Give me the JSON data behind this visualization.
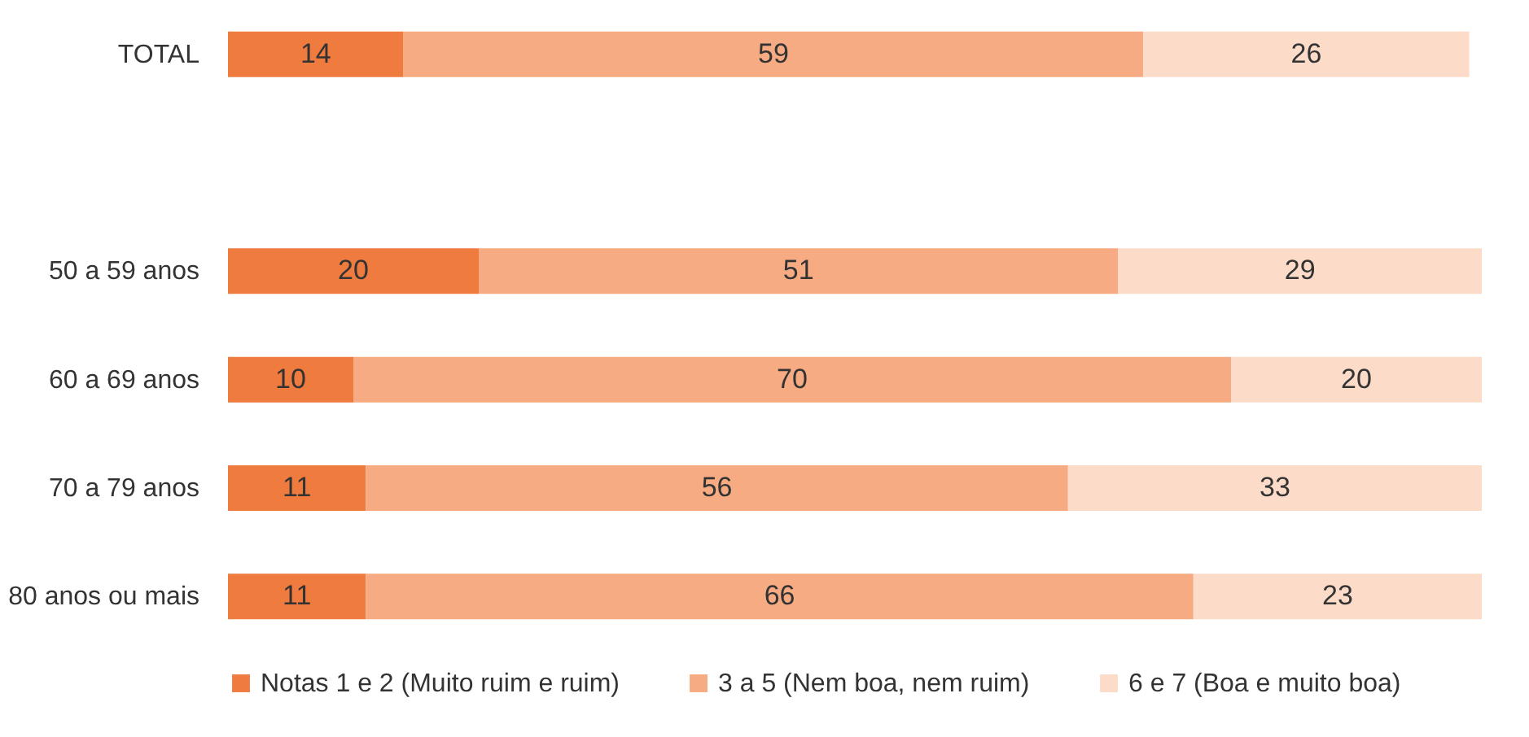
{
  "chart_data": {
    "type": "bar",
    "orientation": "horizontal",
    "stacked": true,
    "data_labels": true,
    "legend": "bottom",
    "categories": [
      "TOTAL",
      null,
      "50 a 59 anos",
      "60 a 69 anos",
      "70 a 79 anos",
      "80 anos ou mais"
    ],
    "series": [
      {
        "name": "Notas 1 e 2 (Muito ruim e ruim)",
        "color": "#f07b3f",
        "values": [
          14,
          null,
          20,
          10,
          11,
          11
        ]
      },
      {
        "name": "3 a 5 (Nem boa, nem ruim)",
        "color": "#f6ab82",
        "values": [
          59,
          null,
          51,
          70,
          56,
          66
        ]
      },
      {
        "name": "6 e 7 (Boa e muito boa)",
        "color": "#fcdcc8",
        "values": [
          26,
          null,
          29,
          20,
          33,
          23
        ]
      }
    ]
  }
}
